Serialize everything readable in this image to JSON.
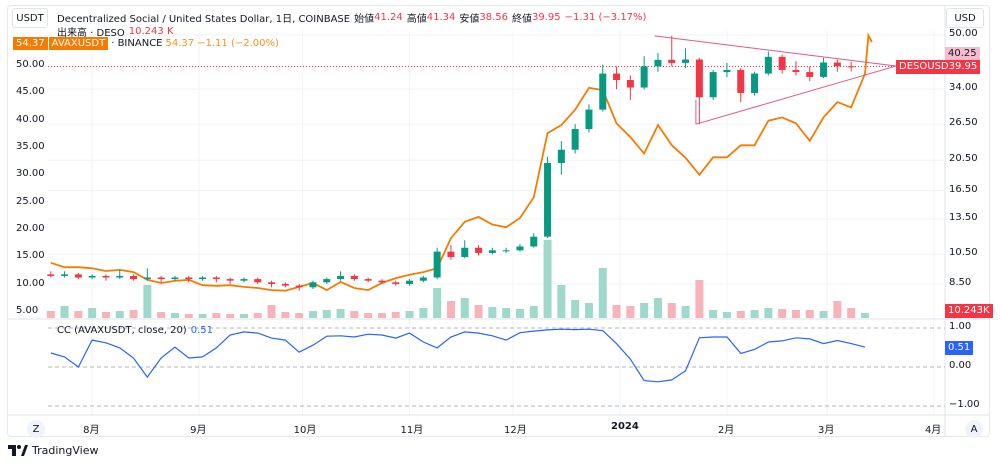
{
  "header": {
    "left_currency": "USDT",
    "right_currency": "USD",
    "title": "Decentralized Social / United States Dollar, 1日, COINBASE",
    "open_label": "始値",
    "open": "41.24",
    "high_label": "高値",
    "high": "41.34",
    "low_label": "安値",
    "low": "38.56",
    "close_label": "終値",
    "close": "39.95",
    "change": "−1.31 (−3.17%)",
    "volume_label": "出来高 · DESO",
    "volume": "10.243 K",
    "compare_price_badge": "54.37",
    "compare_symbol": "AVAXUSDT",
    "compare_exchange": "· BINANCE",
    "compare_price": "54.37",
    "compare_change": "−1.11 (−2.00%)"
  },
  "indicator": {
    "label": "CC (AVAXUSDT, close, 20)",
    "value": "0.51"
  },
  "price_tags": {
    "symbol": "DESOUSD",
    "price": "39.95",
    "drawing_price": "40.25",
    "volume": "10.243K",
    "cc": "0.51",
    "avax": "54.37"
  },
  "buttons": {
    "zoom": "Z",
    "auto": "A"
  },
  "brand": "TradingView",
  "colors": {
    "up": "#089981",
    "down": "#f23645",
    "avax": "#f57c00",
    "cc": "#2962ff",
    "drawing": "#e4578a"
  },
  "chart_data": {
    "type": "candlestick",
    "right_axis": {
      "scale": "log",
      "ticks": [
        "50.00",
        "34.00",
        "26.50",
        "20.50",
        "16.50",
        "13.50",
        "10.50",
        "8.50"
      ]
    },
    "left_axis": {
      "scale": "linear",
      "ticks": [
        "50.00",
        "45.00",
        "40.00",
        "35.00",
        "30.00",
        "25.00",
        "20.00",
        "15.00",
        "10.00",
        "5.00"
      ]
    },
    "cc_axis": {
      "ticks": [
        "1.00",
        "0.00",
        "−1.00"
      ],
      "ylim": [
        -1,
        1
      ]
    },
    "time_ticks": [
      {
        "label": "8月",
        "date": "2023-08-01"
      },
      {
        "label": "9月",
        "date": "2023-09-01"
      },
      {
        "label": "10月",
        "date": "2023-10-01"
      },
      {
        "label": "11月",
        "date": "2023-11-01"
      },
      {
        "label": "12月",
        "date": "2023-12-01"
      },
      {
        "label": "2024",
        "date": "2024-01-01"
      },
      {
        "label": "2月",
        "date": "2024-02-01"
      },
      {
        "label": "3月",
        "date": "2024-03-01"
      },
      {
        "label": "4月",
        "date": "2024-04-01"
      }
    ],
    "grid": true,
    "dates": [
      "2023-07-20",
      "2023-07-24",
      "2023-07-28",
      "2023-08-01",
      "2023-08-05",
      "2023-08-09",
      "2023-08-13",
      "2023-08-17",
      "2023-08-21",
      "2023-08-25",
      "2023-08-29",
      "2023-09-02",
      "2023-09-06",
      "2023-09-10",
      "2023-09-14",
      "2023-09-18",
      "2023-09-22",
      "2023-09-26",
      "2023-09-30",
      "2023-10-04",
      "2023-10-08",
      "2023-10-12",
      "2023-10-16",
      "2023-10-20",
      "2023-10-24",
      "2023-10-28",
      "2023-11-01",
      "2023-11-05",
      "2023-11-09",
      "2023-11-13",
      "2023-11-17",
      "2023-11-21",
      "2023-11-25",
      "2023-11-29",
      "2023-12-03",
      "2023-12-07",
      "2023-12-11",
      "2023-12-15",
      "2023-12-19",
      "2023-12-23",
      "2023-12-27",
      "2023-12-31",
      "2024-01-04",
      "2024-01-08",
      "2024-01-12",
      "2024-01-16",
      "2024-01-20",
      "2024-01-24",
      "2024-01-28",
      "2024-02-01",
      "2024-02-05",
      "2024-02-09",
      "2024-02-13",
      "2024-02-17",
      "2024-02-21",
      "2024-02-25",
      "2024-02-29",
      "2024-03-04",
      "2024-03-08",
      "2024-03-12"
    ],
    "deso_ohlc": [
      [
        9.1,
        9.3,
        8.9,
        9.0
      ],
      [
        9.0,
        9.3,
        8.9,
        9.1
      ],
      [
        9.1,
        9.2,
        8.8,
        8.9
      ],
      [
        8.9,
        9.1,
        8.8,
        9.0
      ],
      [
        9.0,
        9.1,
        8.7,
        8.9
      ],
      [
        8.9,
        9.4,
        8.8,
        9.0
      ],
      [
        9.0,
        9.1,
        8.7,
        8.8
      ],
      [
        8.8,
        9.5,
        8.7,
        8.9
      ],
      [
        8.9,
        9.0,
        8.6,
        8.8
      ],
      [
        8.8,
        9.0,
        8.7,
        8.9
      ],
      [
        8.9,
        9.0,
        8.6,
        8.8
      ],
      [
        8.8,
        9.0,
        8.7,
        8.9
      ],
      [
        8.9,
        9.0,
        8.6,
        8.8
      ],
      [
        8.8,
        8.9,
        8.5,
        8.7
      ],
      [
        8.7,
        8.9,
        8.6,
        8.8
      ],
      [
        8.8,
        8.9,
        8.5,
        8.6
      ],
      [
        8.6,
        8.7,
        8.3,
        8.5
      ],
      [
        8.5,
        8.6,
        8.3,
        8.4
      ],
      [
        8.4,
        8.5,
        8.1,
        8.3
      ],
      [
        8.3,
        8.7,
        8.2,
        8.6
      ],
      [
        8.6,
        8.9,
        8.5,
        8.8
      ],
      [
        8.8,
        9.3,
        8.7,
        9.0
      ],
      [
        9.0,
        9.1,
        8.7,
        8.8
      ],
      [
        8.8,
        8.9,
        8.6,
        8.7
      ],
      [
        8.7,
        8.8,
        8.5,
        8.6
      ],
      [
        8.6,
        8.7,
        8.4,
        8.5
      ],
      [
        8.5,
        8.8,
        8.4,
        8.7
      ],
      [
        8.7,
        9.0,
        8.6,
        8.9
      ],
      [
        8.9,
        11.0,
        8.8,
        10.7
      ],
      [
        10.7,
        11.2,
        10.1,
        10.3
      ],
      [
        10.3,
        11.6,
        10.2,
        11.0
      ],
      [
        11.0,
        11.2,
        10.4,
        10.6
      ],
      [
        10.6,
        11.0,
        10.5,
        10.8
      ],
      [
        10.8,
        11.0,
        10.6,
        10.8
      ],
      [
        10.8,
        11.3,
        10.7,
        11.1
      ],
      [
        11.1,
        12.2,
        11.0,
        11.9
      ],
      [
        11.9,
        21.0,
        11.8,
        20.1
      ],
      [
        20.1,
        23.5,
        18.5,
        22.1
      ],
      [
        22.1,
        26.5,
        21.5,
        25.6
      ],
      [
        25.6,
        30.5,
        25.0,
        29.4
      ],
      [
        29.4,
        40.5,
        29.0,
        38.0
      ],
      [
        38.0,
        40.0,
        34.0,
        36.3
      ],
      [
        36.3,
        37.5,
        31.5,
        34.4
      ],
      [
        34.4,
        43.0,
        34.0,
        40.0
      ],
      [
        40.0,
        44.0,
        38.5,
        41.9
      ],
      [
        41.9,
        49.7,
        40.0,
        41.0
      ],
      [
        41.0,
        45.5,
        39.5,
        42.0
      ],
      [
        42.0,
        42.5,
        26.5,
        32.1
      ],
      [
        32.1,
        39.0,
        31.5,
        38.4
      ],
      [
        38.4,
        41.0,
        37.0,
        39.0
      ],
      [
        39.0,
        39.5,
        31.0,
        33.1
      ],
      [
        33.1,
        38.5,
        32.5,
        38.0
      ],
      [
        38.0,
        44.5,
        37.5,
        42.8
      ],
      [
        42.8,
        43.5,
        38.0,
        39.0
      ],
      [
        39.0,
        41.5,
        37.5,
        38.4
      ],
      [
        38.4,
        40.0,
        36.0,
        37.1
      ],
      [
        37.1,
        42.5,
        36.8,
        41.1
      ],
      [
        41.1,
        42.0,
        38.5,
        40.0
      ],
      [
        40.0,
        41.34,
        38.56,
        39.95
      ]
    ],
    "deso_volume_k": [
      14,
      24,
      14,
      20,
      12,
      14,
      16,
      66,
      12,
      10,
      8,
      8,
      10,
      8,
      8,
      10,
      26,
      12,
      10,
      14,
      16,
      18,
      14,
      10,
      10,
      12,
      14,
      20,
      60,
      34,
      40,
      26,
      22,
      20,
      18,
      24,
      156,
      66,
      36,
      30,
      100,
      26,
      24,
      30,
      40,
      30,
      24,
      76,
      16,
      12,
      14,
      16,
      20,
      18,
      16,
      16,
      14,
      34,
      20,
      10.243
    ],
    "avax_close": {
      "dates": [
        "2023-07-20",
        "2023-07-24",
        "2023-07-28",
        "2023-08-01",
        "2023-08-05",
        "2023-08-09",
        "2023-08-13",
        "2023-08-17",
        "2023-08-21",
        "2023-08-25",
        "2023-08-29",
        "2023-09-02",
        "2023-09-06",
        "2023-09-10",
        "2023-09-14",
        "2023-09-18",
        "2023-09-22",
        "2023-09-26",
        "2023-09-30",
        "2023-10-04",
        "2023-10-08",
        "2023-10-12",
        "2023-10-16",
        "2023-10-20",
        "2023-10-24",
        "2023-10-28",
        "2023-11-01",
        "2023-11-05",
        "2023-11-09",
        "2023-11-13",
        "2023-11-17",
        "2023-11-21",
        "2023-11-25",
        "2023-11-29",
        "2023-12-03",
        "2023-12-07",
        "2023-12-11",
        "2023-12-15",
        "2023-12-19",
        "2023-12-23",
        "2023-12-27",
        "2023-12-31",
        "2024-01-04",
        "2024-01-08",
        "2024-01-12",
        "2024-01-16",
        "2024-01-20",
        "2024-01-24",
        "2024-01-28",
        "2024-02-01",
        "2024-02-05",
        "2024-02-09",
        "2024-02-13",
        "2024-02-17",
        "2024-02-21",
        "2024-02-25",
        "2024-02-29",
        "2024-03-04",
        "2024-03-08",
        "2024-03-12",
        "2024-03-13",
        "2024-03-14"
      ],
      "values": [
        14.0,
        13.2,
        13.2,
        13.0,
        12.5,
        12.7,
        12.3,
        10.9,
        10.3,
        10.7,
        10.9,
        9.9,
        9.8,
        9.9,
        9.6,
        9.4,
        9.0,
        8.9,
        9.6,
        10.3,
        9.0,
        10.5,
        9.4,
        9.0,
        10.3,
        11.2,
        11.8,
        12.3,
        13.0,
        18.5,
        21.5,
        22.4,
        21.0,
        20.5,
        22.2,
        26.0,
        37.7,
        39.2,
        42.0,
        46.0,
        45.6,
        39.5,
        37.0,
        34.0,
        39.2,
        35.5,
        33.2,
        30.1,
        33.3,
        33.3,
        35.5,
        35.5,
        40.0,
        40.6,
        39.5,
        36.3,
        40.6,
        43.4,
        42.4,
        48.6,
        55.6,
        54.37
      ]
    },
    "cc_values": [
      0.36,
      0.26,
      0.0,
      0.69,
      0.62,
      0.49,
      0.23,
      -0.26,
      0.23,
      0.51,
      0.23,
      0.26,
      0.49,
      0.82,
      0.9,
      0.87,
      0.74,
      0.69,
      0.38,
      0.56,
      0.79,
      0.8,
      0.77,
      0.84,
      0.82,
      0.74,
      0.87,
      0.64,
      0.49,
      0.77,
      0.9,
      0.87,
      0.8,
      0.69,
      0.88,
      0.92,
      0.95,
      0.97,
      0.96,
      0.97,
      0.93,
      0.6,
      0.2,
      -0.35,
      -0.38,
      -0.33,
      -0.1,
      0.75,
      0.77,
      0.77,
      0.35,
      0.45,
      0.64,
      0.67,
      0.75,
      0.72,
      0.6,
      0.68,
      0.6,
      0.51
    ],
    "last_price_line": 39.95,
    "triangle_drawing": [
      [
        "2024-01-11",
        49.7
      ],
      [
        "2024-03-21",
        40.1
      ],
      [
        "2024-01-23",
        26.5
      ],
      [
        "2024-01-23",
        31.5
      ]
    ]
  }
}
